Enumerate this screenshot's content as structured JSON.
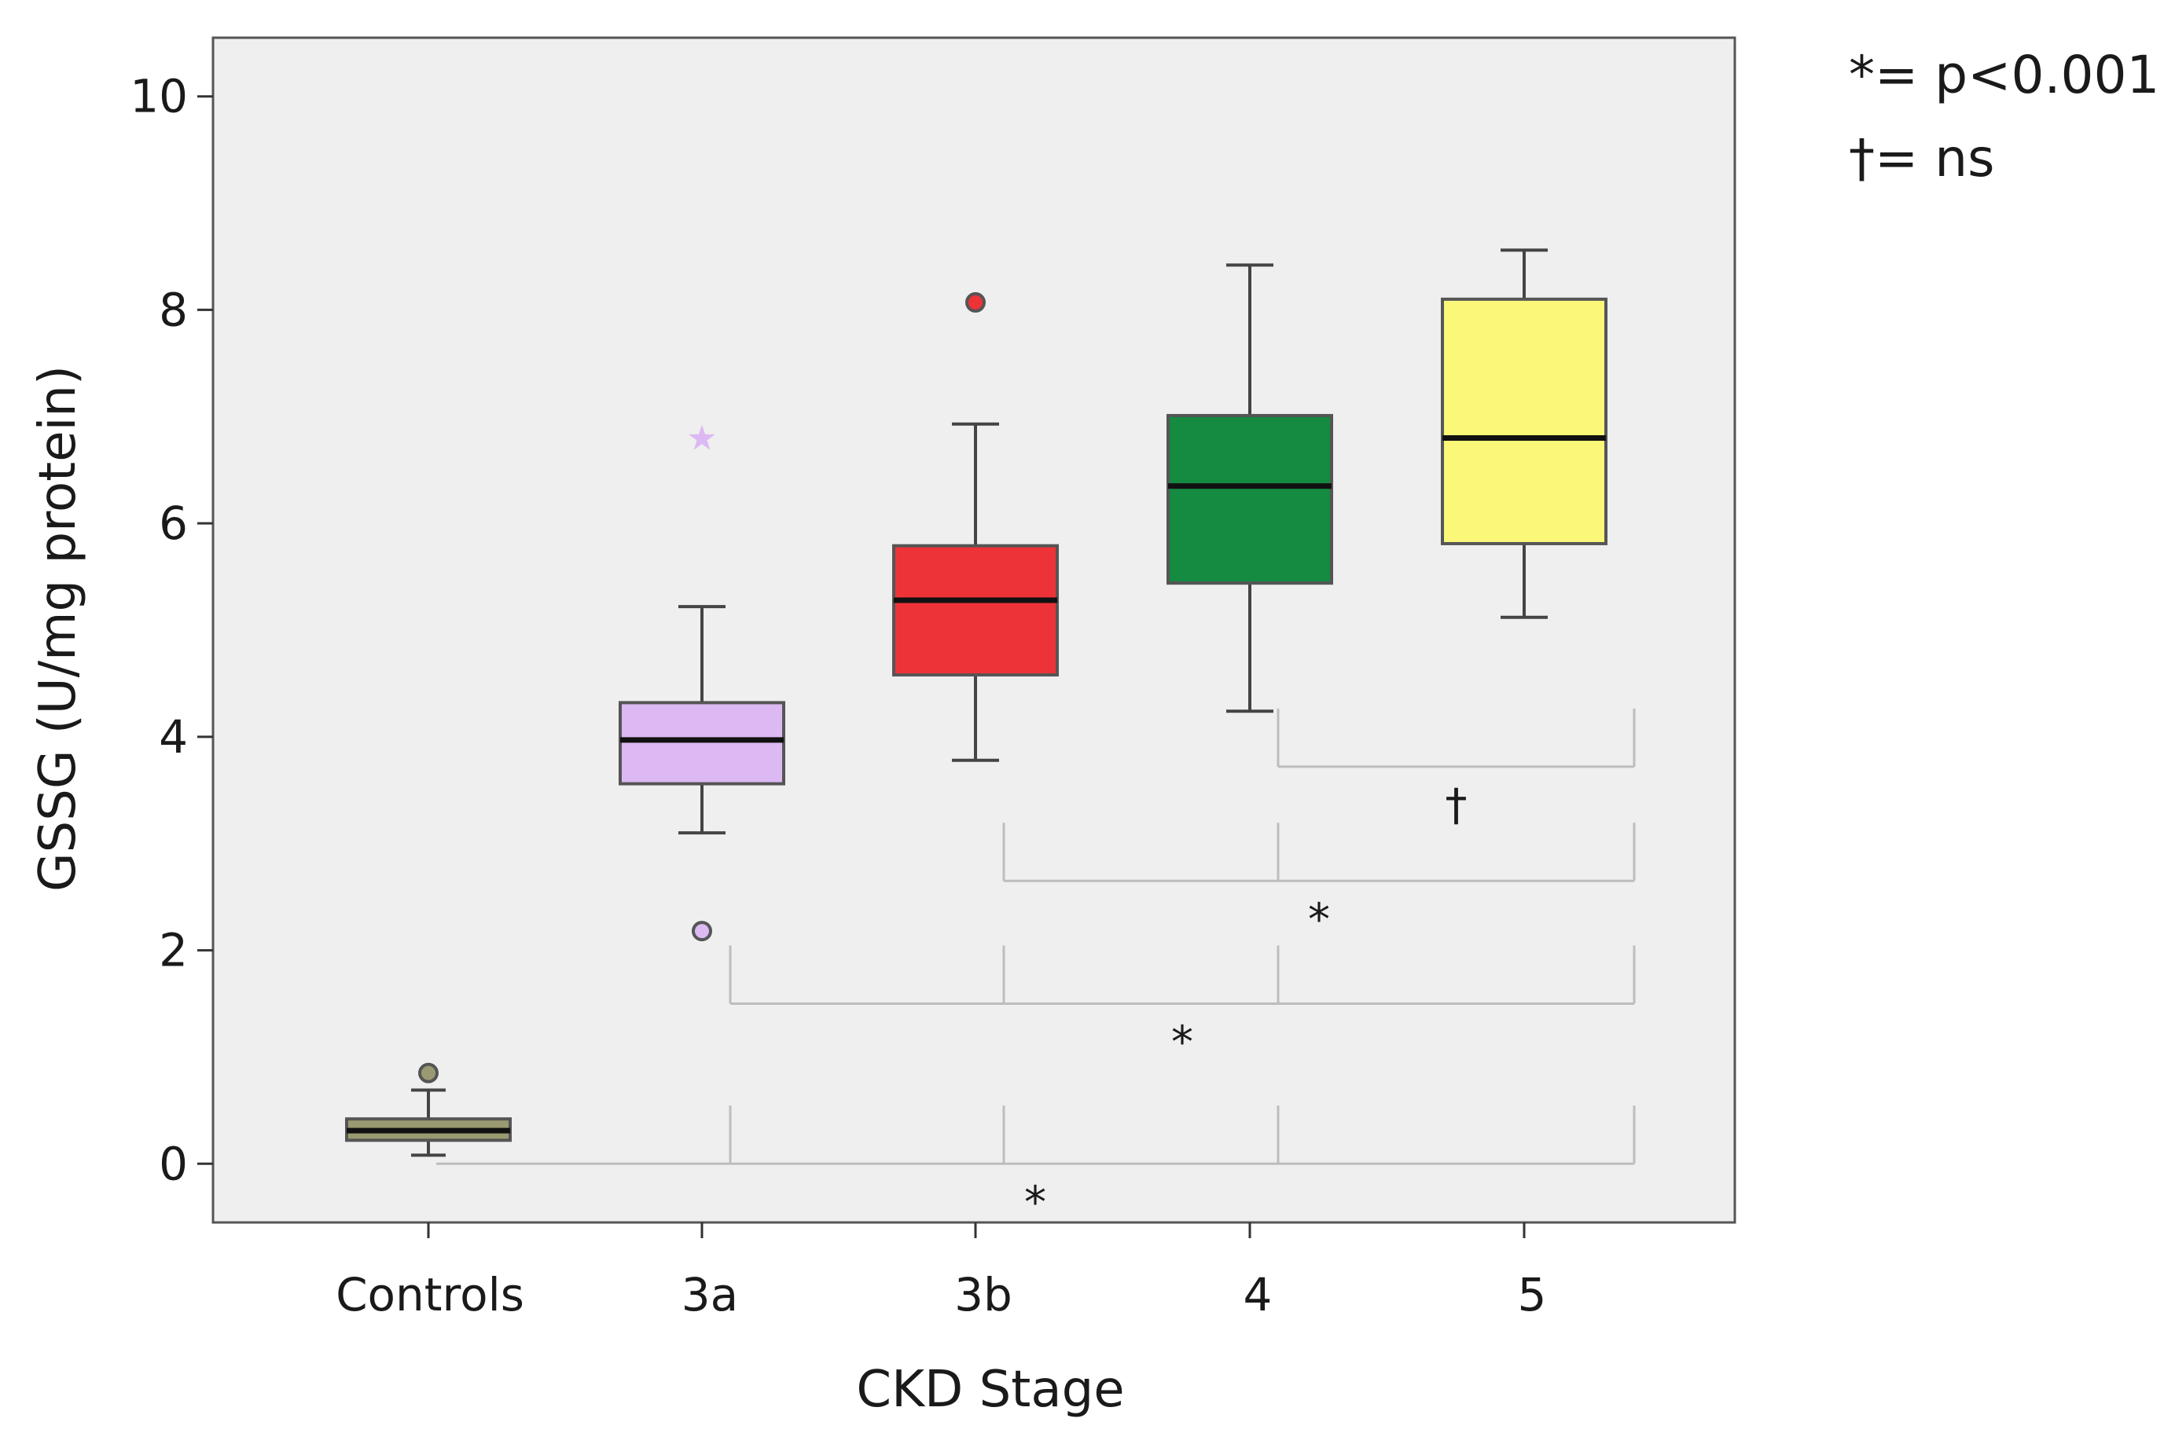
{
  "chart_data": {
    "type": "box",
    "title": "",
    "xlabel": "CKD Stage",
    "ylabel": "GSSG (U/mg protein)",
    "ylim": [
      -0.55,
      10.55
    ],
    "yticks": [
      "0",
      "2",
      "4",
      "6",
      "8",
      "10"
    ],
    "ytick_values": [
      0,
      2,
      4,
      6,
      8,
      10
    ],
    "categories": [
      "Controls",
      "3a",
      "3b",
      "4",
      "5"
    ],
    "boxes": [
      {
        "category": "Controls",
        "whisker_low": 0.08,
        "q1": 0.22,
        "median": 0.31,
        "q3": 0.42,
        "whisker_high": 0.69,
        "outliers": [
          {
            "value": 0.85,
            "marker": "circle"
          }
        ],
        "color": "#9a9a72"
      },
      {
        "category": "3a",
        "whisker_low": 3.1,
        "q1": 3.56,
        "median": 3.97,
        "q3": 4.32,
        "whisker_high": 5.22,
        "outliers": [
          {
            "value": 2.18,
            "marker": "circle"
          },
          {
            "value": 6.82,
            "marker": "star"
          }
        ],
        "color": "#dcb9f2"
      },
      {
        "category": "3b",
        "whisker_low": 3.78,
        "q1": 4.58,
        "median": 5.28,
        "q3": 5.79,
        "whisker_high": 6.93,
        "outliers": [
          {
            "value": 8.07,
            "marker": "circle"
          }
        ],
        "color": "#ee3338"
      },
      {
        "category": "4",
        "whisker_low": 4.24,
        "q1": 5.44,
        "median": 6.35,
        "q3": 7.01,
        "whisker_high": 8.42,
        "outliers": [],
        "color": "#158a41"
      },
      {
        "category": "5",
        "whisker_low": 5.12,
        "q1": 5.81,
        "median": 6.8,
        "q3": 8.1,
        "whisker_high": 8.56,
        "outliers": [],
        "color": "#fbf779"
      }
    ],
    "comparisons": [
      {
        "from": "Controls",
        "to": [
          "3a",
          "3b",
          "4",
          "5"
        ],
        "level": 0.0,
        "symbol": "*"
      },
      {
        "from": "3a",
        "to": [
          "3b",
          "4",
          "5"
        ],
        "level": 1.5,
        "symbol": "*"
      },
      {
        "from": "3b",
        "to": [
          "4",
          "5"
        ],
        "level": 2.65,
        "symbol": "*"
      },
      {
        "from": "4",
        "to": [
          "5"
        ],
        "level": 3.72,
        "symbol": "†"
      }
    ],
    "legend": [
      "*= p<0.001",
      "†=  ns"
    ],
    "grid": false
  }
}
